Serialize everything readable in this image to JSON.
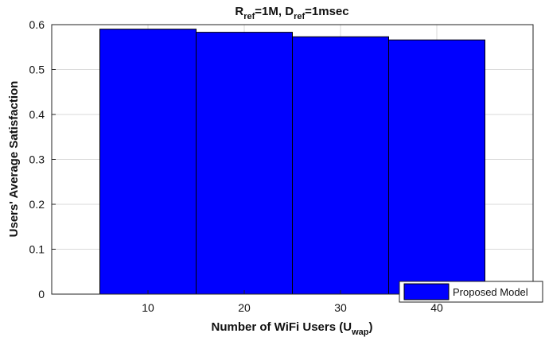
{
  "chart_data": {
    "type": "bar",
    "title": {
      "main": "R",
      "sub1": "ref",
      "mid": "=1M, D",
      "sub2": "ref",
      "end": "=1msec"
    },
    "xlabel": {
      "main": "Number of WiFi Users (U",
      "sub": "wap",
      "end": ")"
    },
    "ylabel": "Users' Average Satisfaction",
    "categories": [
      "10",
      "20",
      "30",
      "40"
    ],
    "series": [
      {
        "name": "Proposed Model",
        "values": [
          0.59,
          0.583,
          0.573,
          0.566
        ]
      }
    ],
    "xlim": [
      0,
      50
    ],
    "ylim": [
      0,
      0.6
    ],
    "yticks": [
      "0",
      "0.1",
      "0.2",
      "0.3",
      "0.4",
      "0.5",
      "0.6"
    ],
    "grid": true,
    "legend_position": "bottom-right",
    "colors": {
      "bar": "#0000ff",
      "edge": "#000000",
      "grid": "#d9d9d9"
    }
  }
}
